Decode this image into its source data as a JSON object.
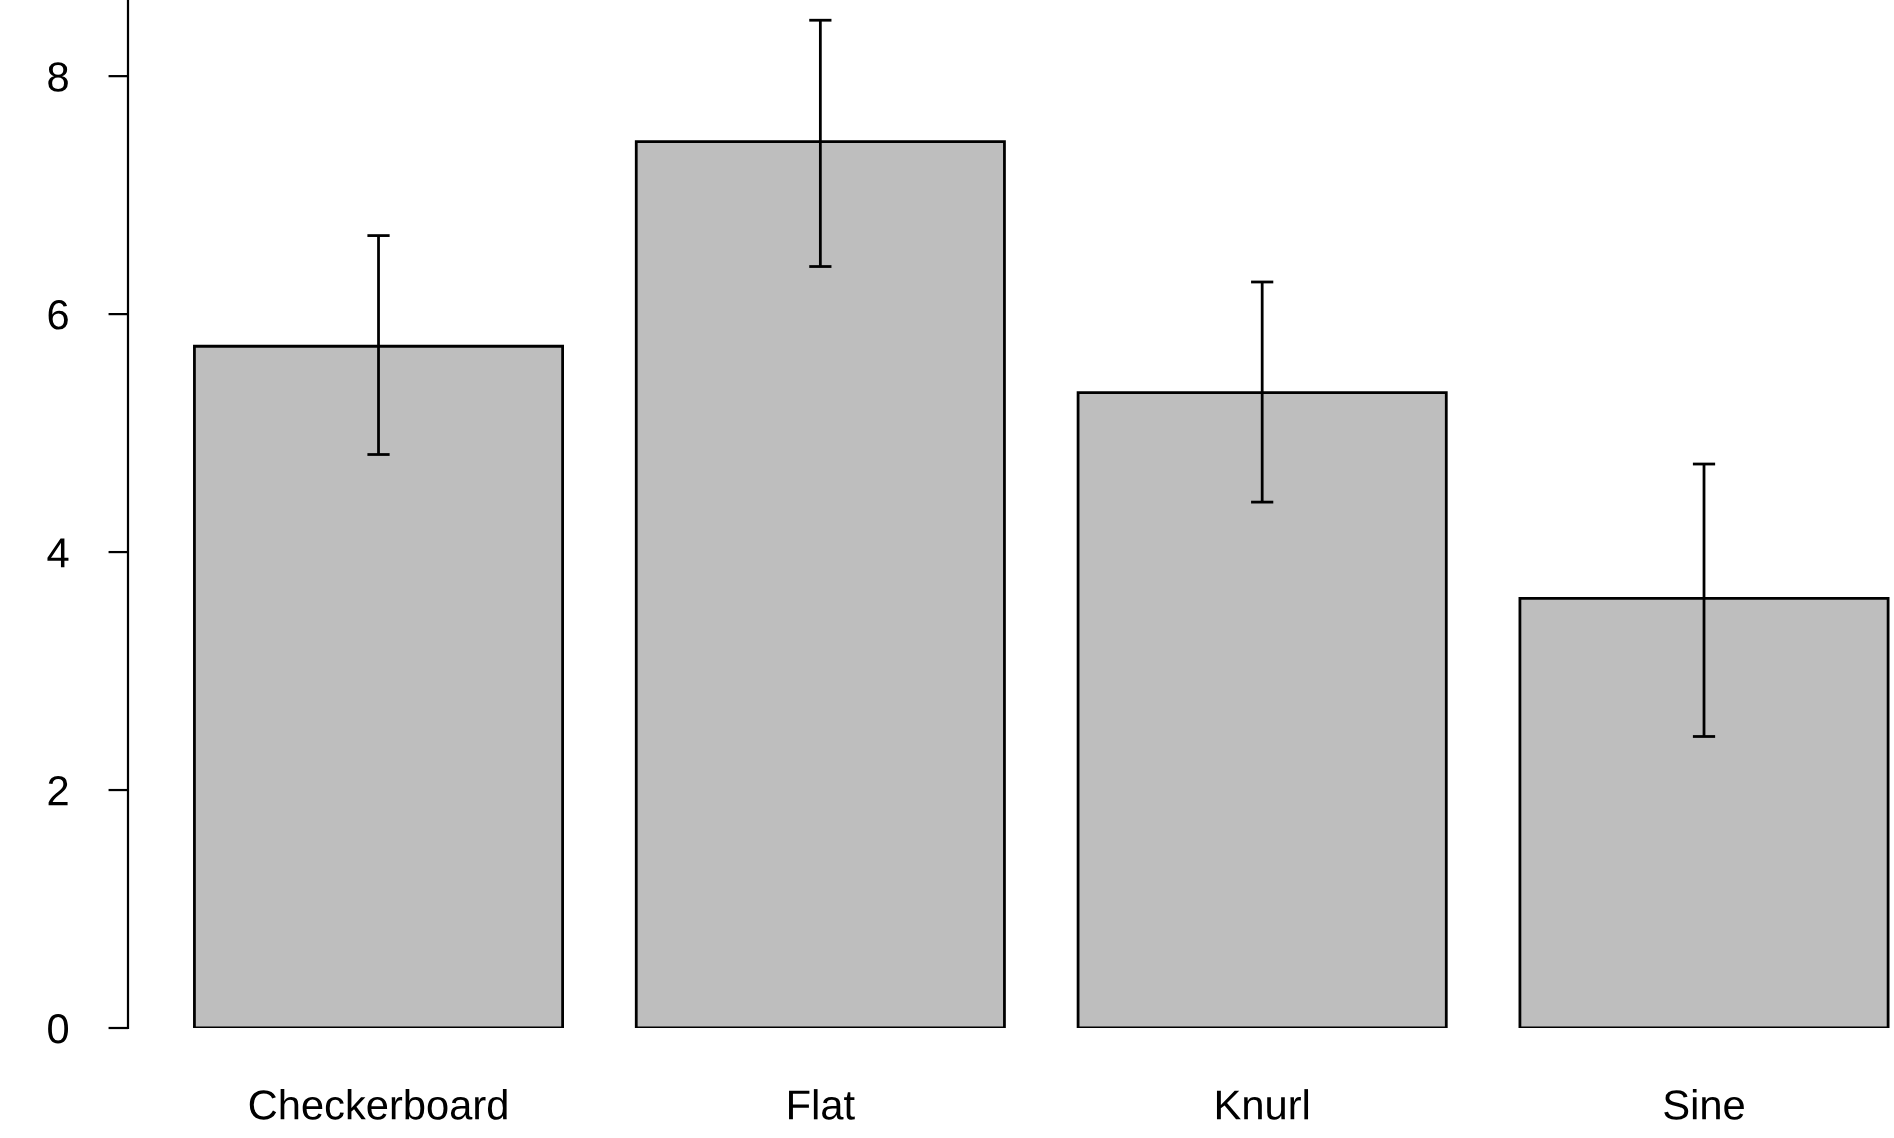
{
  "chart_data": {
    "type": "bar",
    "categories": [
      "Checkerboard",
      "Flat",
      "Knurl",
      "Sine"
    ],
    "values": [
      5.73,
      7.45,
      5.34,
      3.61
    ],
    "errors": [
      [
        4.82,
        6.66
      ],
      [
        6.4,
        8.47
      ],
      [
        4.42,
        6.27
      ],
      [
        2.45,
        4.74
      ]
    ],
    "color": "#bebebe",
    "ylim": [
      0,
      8.64
    ],
    "yticks": [
      0,
      2,
      4,
      6,
      8
    ],
    "grid": false
  }
}
